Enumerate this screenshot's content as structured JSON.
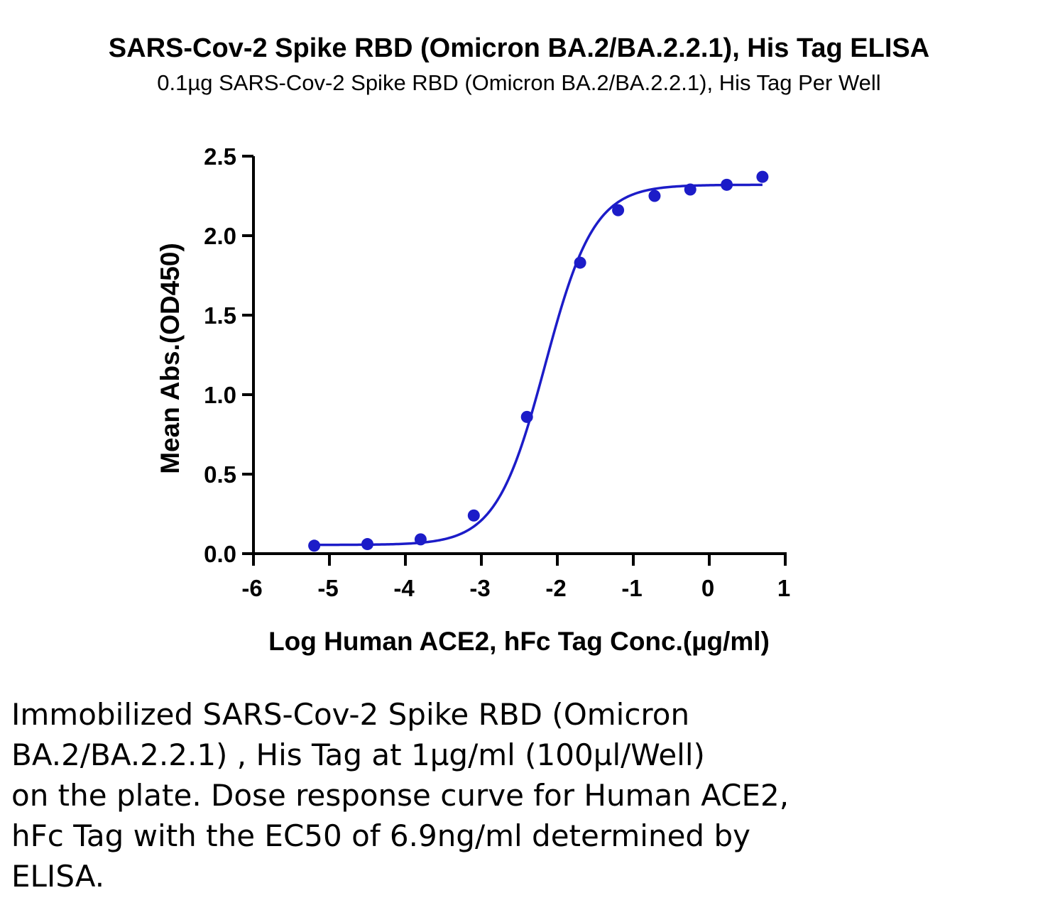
{
  "chart_data": {
    "type": "scatter",
    "title": "SARS-Cov-2 Spike RBD (Omicron BA.2/BA.2.2.1), His Tag ELISA",
    "subtitle": "0.1µg SARS-Cov-2 Spike RBD (Omicron BA.2/BA.2.2.1), His Tag Per Well",
    "xlabel": "Log Human ACE2, hFc Tag Conc.(µg/ml)",
    "ylabel": "Mean Abs.(OD450)",
    "xlim": [
      -6,
      1
    ],
    "ylim": [
      0.0,
      2.5
    ],
    "x_ticks": [
      "-6",
      "-5",
      "-4",
      "-3",
      "-2",
      "-1",
      "0",
      "1"
    ],
    "y_ticks": [
      "0.0",
      "0.5",
      "1.0",
      "1.5",
      "2.0",
      "2.5"
    ],
    "grid": false,
    "color": "#1c1cc8",
    "points": {
      "x": [
        -5.2,
        -4.5,
        -3.8,
        -3.1,
        -2.4,
        -1.7,
        -1.2,
        -0.72,
        -0.25,
        0.23,
        0.7
      ],
      "y": [
        0.05,
        0.06,
        0.09,
        0.24,
        0.86,
        1.83,
        2.16,
        2.25,
        2.29,
        2.32,
        2.37
      ]
    },
    "fit": {
      "model": "4PL",
      "bottom": 0.055,
      "top": 2.32,
      "logEC50": -2.16,
      "hill": 1.35,
      "x_range": [
        -5.2,
        0.7
      ]
    }
  },
  "caption": "Immobilized SARS-Cov-2 Spike RBD (Omicron\nBA.2/BA.2.2.1) , His Tag at 1µg/ml (100µl/Well)\non the plate. Dose response curve for Human ACE2,\nhFc Tag with the EC50 of 6.9ng/ml determined by\nELISA."
}
